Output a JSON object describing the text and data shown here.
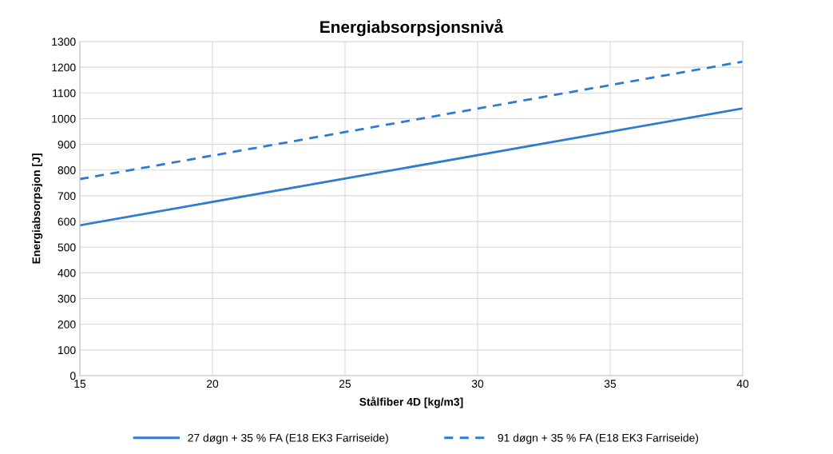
{
  "chart_data": {
    "type": "line",
    "title": "Energiabsorpsjonsnivå",
    "xlabel": "Stålfiber 4D [kg/m3]",
    "ylabel": "Energiabsorpsjon [J]",
    "x": [
      15,
      40
    ],
    "series": [
      {
        "name": "27 døgn + 35 % FA (E18 EK3 Farriseide)",
        "color": "#2e7bcf",
        "values": [
          585,
          1040
        ],
        "line_style": "solid"
      },
      {
        "name": "91 døgn + 35 % FA (E18 EK3 Farriseide)",
        "color": "#2e7bcf",
        "values": [
          765,
          1222
        ],
        "line_style": "dashed"
      }
    ],
    "xlim": [
      15,
      40
    ],
    "xticks": [
      15,
      20,
      25,
      30,
      35,
      40
    ],
    "ylim": [
      0,
      1300
    ],
    "yticks": [
      0,
      100,
      200,
      300,
      400,
      500,
      600,
      700,
      800,
      900,
      1000,
      1100,
      1200,
      1300
    ],
    "grid": true,
    "legend": "bottom",
    "marker": "none"
  }
}
